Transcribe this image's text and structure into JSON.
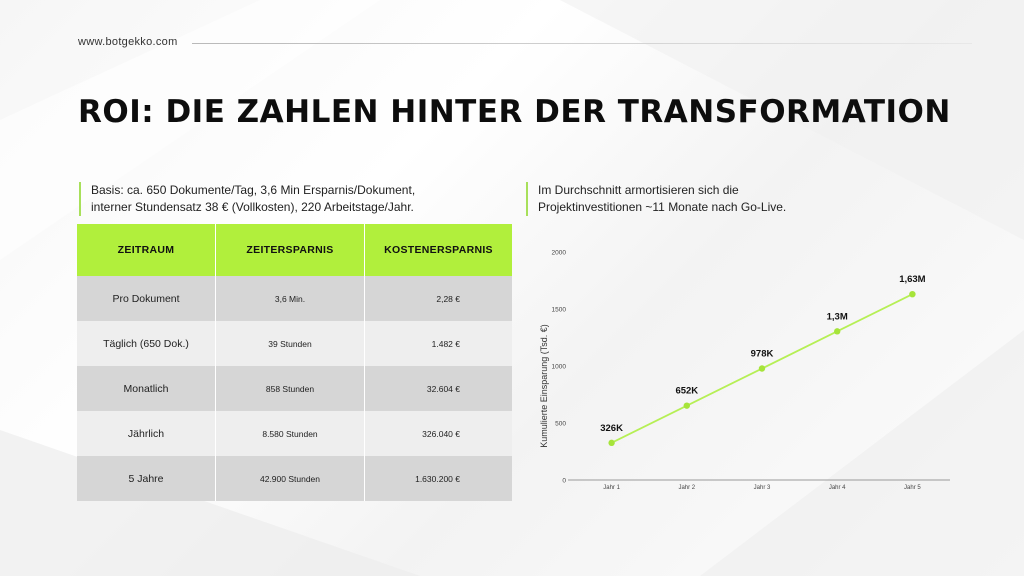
{
  "header": {
    "url": "www.botgekko.com"
  },
  "title": "ROI: DIE ZAHLEN HINTER DER TRANSFORMATION",
  "note_left": {
    "line1": "Basis: ca. 650 Dokumente/Tag, 3,6 Min Ersparnis/Dokument,",
    "line2": "interner Stundensatz 38 € (Vollkosten), 220 Arbeitstage/Jahr."
  },
  "note_right": {
    "line1": "Im Durchschnitt armortisieren sich die",
    "line2": "Projektinvestitionen ~11 Monate nach Go-Live."
  },
  "table": {
    "headers": [
      "ZEITRAUM",
      "ZEITERSPARNIS",
      "KOSTENERSPARNIS"
    ],
    "rows": [
      [
        "Pro Dokument",
        "3,6 Min.",
        "2,28 €"
      ],
      [
        "Täglich (650 Dok.)",
        "39 Stunden",
        "1.482 €"
      ],
      [
        "Monatlich",
        "858 Stunden",
        "32.604 €"
      ],
      [
        "Jährlich",
        "8.580 Stunden",
        "326.040 €"
      ],
      [
        "5 Jahre",
        "42.900 Stunden",
        "1.630.200 €"
      ]
    ]
  },
  "colors": {
    "accent": "#b1ef3c",
    "line": "#b6ef55",
    "point": "#a6e43a",
    "row_dark": "#d6d6d6",
    "row_light": "#eeeeee"
  },
  "chart_data": {
    "type": "line",
    "categories": [
      "Jahr 1",
      "Jahr 2",
      "Jahr 3",
      "Jahr 4",
      "Jahr 5"
    ],
    "series": [
      {
        "values": [
          326,
          652,
          978,
          1304,
          1630
        ],
        "labels": [
          "326K",
          "652K",
          "978K",
          "1,3M",
          "1,63M"
        ]
      }
    ],
    "ylabel": "Kumulierte Einsparung (Tsd. €)",
    "xlabel": "",
    "ylim": [
      0,
      2000
    ],
    "yticks": [
      "0",
      "500",
      "1000",
      "1500",
      "2000"
    ],
    "ytick_values": [
      0,
      500,
      1000,
      1500,
      2000
    ],
    "grid": false,
    "legend": "none"
  }
}
